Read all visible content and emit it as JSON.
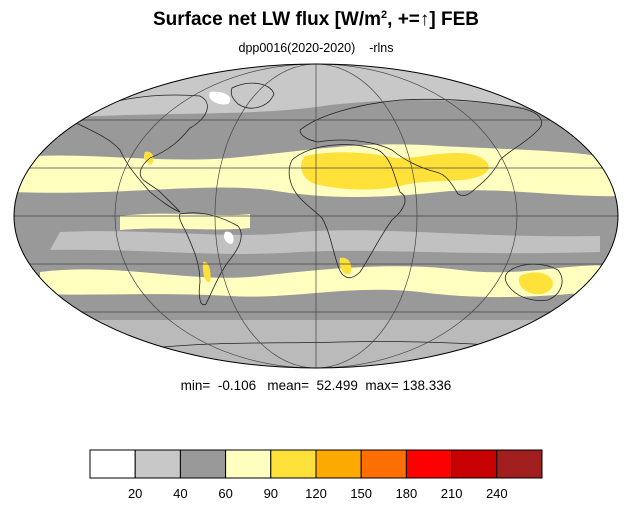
{
  "header": {
    "title_main": "Surface net LW flux [W/m",
    "title_sup": "2",
    "title_tail": ", +=↑]  FEB",
    "subtitle_run": "dpp0016(2020-2020)",
    "subtitle_var": "-rlns"
  },
  "stats": {
    "min_label": "min=",
    "min_value": "-0.106",
    "mean_label": "mean=",
    "mean_value": "52.499",
    "max_label": "max=",
    "max_value": "138.336"
  },
  "map_meta": {
    "projection": "Mollweide",
    "grid": true,
    "field_levels_colors": {
      "0-20": "#ffffff",
      "20-40": "#c8c8c8",
      "40-60": "#999999",
      "60-90": "#ffffc0",
      "90-120": "#ffe13a",
      "120-150": "#ffaa00"
    }
  },
  "colorbar": {
    "colors": [
      "#ffffff",
      "#c8c8c8",
      "#999999",
      "#ffffc0",
      "#ffe13a",
      "#ffaa00",
      "#ff6e00",
      "#ff0000",
      "#c80000",
      "#a01e1e"
    ],
    "ticks": [
      "20",
      "40",
      "60",
      "90",
      "120",
      "150",
      "180",
      "210",
      "240"
    ]
  }
}
